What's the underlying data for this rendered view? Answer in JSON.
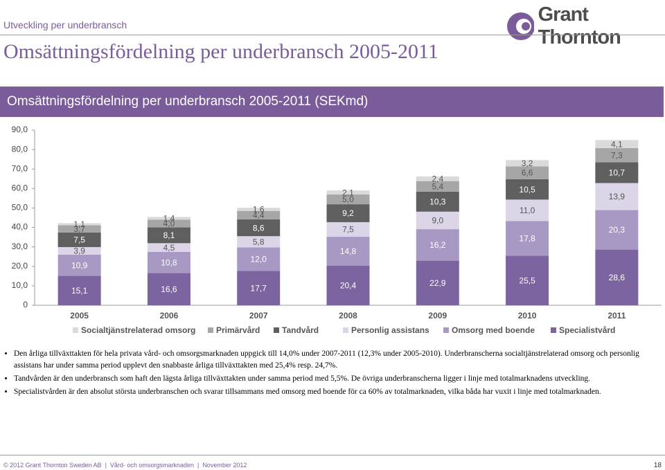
{
  "header": {
    "section": "Utveckling per underbransch",
    "logo": "Grant Thornton",
    "title": "Omsättningsfördelning per underbransch 2005-2011"
  },
  "chart_data": {
    "type": "stacked-bar",
    "title": "Omsättningsfördelning per underbransch 2005-2011 (SEKmd)",
    "categories": [
      "2005",
      "2006",
      "2007",
      "2008",
      "2009",
      "2010",
      "2011"
    ],
    "series": [
      {
        "name": "Specialistvård",
        "color": "#7b64a0",
        "values": [
          15.1,
          16.6,
          17.7,
          20.4,
          22.9,
          25.5,
          28.6
        ],
        "value_labels": [
          "15,1",
          "16,6",
          "17,7",
          "20,4",
          "22,9",
          "25,5",
          "28,6"
        ]
      },
      {
        "name": "Omsorg med boende",
        "color": "#a898c4",
        "values": [
          10.9,
          10.8,
          12.0,
          14.8,
          16.2,
          17.8,
          20.3
        ],
        "value_labels": [
          "10,9",
          "10,8",
          "12,0",
          "14,8",
          "16,2",
          "17,8",
          "20,3"
        ]
      },
      {
        "name": "Personlig assistans",
        "color": "#dcd5e8",
        "values": [
          3.9,
          4.5,
          5.8,
          7.5,
          9.0,
          11.0,
          13.9
        ],
        "value_labels": [
          "3,9",
          "4,5",
          "5,8",
          "7,5",
          "9,0",
          "11,0",
          "13,9"
        ]
      },
      {
        "name": "Tandvård",
        "color": "#5f5f5f",
        "values": [
          7.5,
          8.1,
          8.6,
          9.2,
          10.3,
          10.5,
          10.7
        ],
        "value_labels": [
          "7,5",
          "8,1",
          "8,6",
          "9,2",
          "10,3",
          "10,5",
          "10,7"
        ]
      },
      {
        "name": "Primärvård",
        "color": "#a6a6a6",
        "values": [
          3.7,
          4.0,
          4.4,
          5.0,
          5.4,
          6.6,
          7.3
        ],
        "value_labels": [
          "3,7",
          "4,0",
          "4,4",
          "5,0",
          "5,4",
          "6,6",
          "7,3"
        ]
      },
      {
        "name": "Socialtjänstrelaterad omsorg",
        "color": "#dadada",
        "values": [
          1.1,
          1.4,
          1.6,
          2.1,
          2.4,
          3.2,
          4.1
        ],
        "value_labels": [
          "1,1",
          "1,4",
          "1,6",
          "2,1",
          "2,4",
          "3,2",
          "4,1"
        ]
      }
    ],
    "ylim": [
      0,
      90
    ],
    "yticks": [
      0,
      {
        "value": 10,
        "label": "10,0"
      },
      {
        "value": 20,
        "label": "20,0"
      },
      {
        "value": 30,
        "label": "30,0"
      },
      {
        "value": 40,
        "label": "40,0"
      },
      {
        "value": 50,
        "label": "50,0"
      },
      {
        "value": 60,
        "label": "60,0"
      },
      {
        "value": 70,
        "label": "70,0"
      },
      {
        "value": 80,
        "label": "80,0"
      },
      {
        "value": 90,
        "label": "90,0"
      }
    ],
    "grid": false
  },
  "bullets": [
    "Den årliga tillväxttakten för hela privata vård- och omsorgsmarknaden uppgick till 14,0% under 2007-2011 (12,3% under 2005-2010). Underbranscherna socialtjänstrelaterad omsorg och personlig assistans har under samma period upplevt den snabbaste årliga tillväxttakten med 25,4% resp. 24,7%.",
    "Tandvården är den underbransch som haft den lägsta årliga tillväxttakten under samma period med 5,5%. De övriga underbranscherna ligger i linje med totalmarknadens utveckling.",
    "Specialistvården är den absolut största underbranschen och svarar tillsammans med omsorg med boende för ca 60% av totalmarknaden, vilka båda har vuxit i linje med totalmarknaden."
  ],
  "footer": {
    "copyright": "© 2012 Grant Thornton Sweden AB",
    "document": "Vård- och omsorgsmarknaden",
    "date": "November 2012",
    "page": 18
  }
}
